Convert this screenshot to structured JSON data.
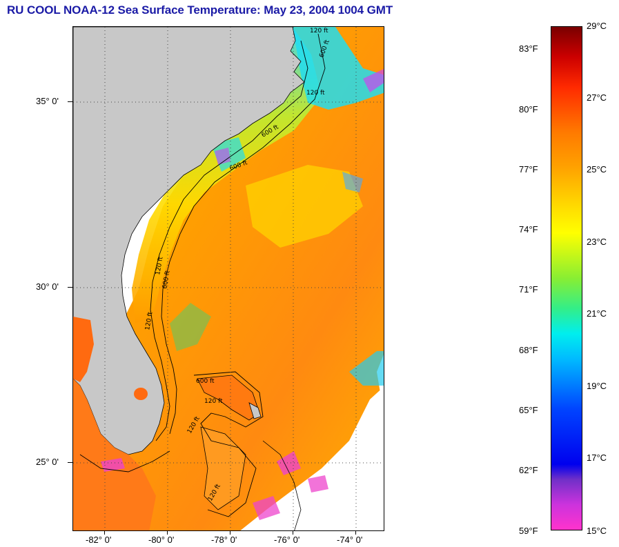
{
  "title": "RU COOL  NOAA-12  Sea Surface Temperature:  May 23, 2004 1004 GMT",
  "map": {
    "lat_labels": [
      "35° 0'",
      "30° 0'",
      "25° 0'"
    ],
    "lon_labels": [
      "-82° 0'",
      "-80° 0'",
      "-78° 0'",
      "-76° 0'",
      "-74° 0'"
    ],
    "contour_labels": [
      "120 ft",
      "600 ft",
      "120 ft",
      "600 ft",
      "600 ft",
      "120 ft",
      "600 ft",
      "120 ft",
      "120 ft",
      "600 ft",
      "120 ft",
      "120 ft"
    ]
  },
  "colorbar": {
    "fahrenheit_labels": [
      "83°F",
      "80°F",
      "77°F",
      "74°F",
      "71°F",
      "68°F",
      "65°F",
      "62°F",
      "59°F"
    ],
    "celsius_labels": [
      "29°C",
      "27°C",
      "25°C",
      "23°C",
      "21°C",
      "19°C",
      "17°C",
      "15°C"
    ],
    "range_c": [
      15,
      29
    ],
    "range_f": [
      59,
      84.2
    ]
  },
  "colors": {
    "title": "#1a1aa6",
    "land": "#c8c8c8",
    "warm_water": "#ff8a1a",
    "no_data": "#ffffff"
  }
}
